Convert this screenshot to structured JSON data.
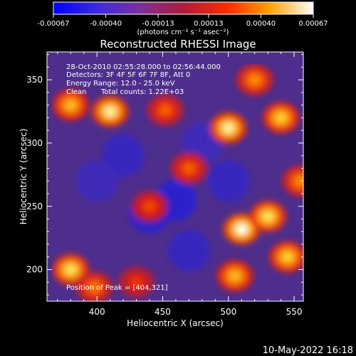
{
  "colorbar": {
    "tick_labels": [
      "-0.00067",
      "-0.00040",
      "-0.00013",
      "0.00013",
      "0.00040",
      "0.00067"
    ],
    "tick_values": [
      -0.00067,
      -0.0004,
      -0.00013,
      0.00013,
      0.0004,
      0.00067
    ],
    "range": [
      -0.00067,
      0.00067
    ],
    "unit_label": "(photons cm⁻² s⁻¹ asec⁻²)",
    "colormap": "blue-purple-red-yellow-white"
  },
  "chart_data": {
    "type": "heatmap",
    "title": "Reconstructed RHESSI Image",
    "xlabel": "Heliocentric X (arcsec)",
    "ylabel": "Heliocentric Y (arcsec)",
    "xlim": [
      362,
      557
    ],
    "ylim": [
      175,
      372
    ],
    "xticks": [
      400,
      450,
      500,
      550
    ],
    "yticks": [
      200,
      250,
      300,
      350
    ],
    "xtick_labels": [
      "400",
      "450",
      "500",
      "550"
    ],
    "ytick_labels": [
      "200",
      "250",
      "300",
      "350"
    ],
    "peak": [
      404,
      321
    ],
    "bright_regions": [
      {
        "x": 410,
        "y": 325,
        "level": 0.95
      },
      {
        "x": 380,
        "y": 330,
        "level": 0.8
      },
      {
        "x": 500,
        "y": 312,
        "level": 0.95
      },
      {
        "x": 540,
        "y": 320,
        "level": 0.85
      },
      {
        "x": 520,
        "y": 350,
        "level": 0.7
      },
      {
        "x": 380,
        "y": 200,
        "level": 0.9
      },
      {
        "x": 510,
        "y": 232,
        "level": 1.0
      },
      {
        "x": 530,
        "y": 242,
        "level": 0.9
      },
      {
        "x": 545,
        "y": 210,
        "level": 0.85
      },
      {
        "x": 505,
        "y": 195,
        "level": 0.8
      },
      {
        "x": 440,
        "y": 250,
        "level": 0.55
      },
      {
        "x": 470,
        "y": 280,
        "level": 0.6
      },
      {
        "x": 452,
        "y": 326,
        "level": 0.6
      },
      {
        "x": 555,
        "y": 270,
        "level": 0.7
      },
      {
        "x": 398,
        "y": 186,
        "level": 0.65
      },
      {
        "x": 430,
        "y": 190,
        "level": 0.5
      }
    ],
    "dim_regions": [
      {
        "x": 420,
        "y": 290,
        "level": -0.6
      },
      {
        "x": 460,
        "y": 255,
        "level": -0.8
      },
      {
        "x": 440,
        "y": 245,
        "level": -0.7
      },
      {
        "x": 480,
        "y": 300,
        "level": -0.5
      },
      {
        "x": 470,
        "y": 215,
        "level": -0.6
      },
      {
        "x": 400,
        "y": 270,
        "level": -0.5
      },
      {
        "x": 500,
        "y": 270,
        "level": -0.6
      }
    ]
  },
  "annotations": {
    "time_range": "28-Oct-2010 02:55:28.000 to 02:56:44.000",
    "detectors": "Detectors: 3F 4F 5F 6F 7F 8F, Att 0",
    "energy": "Energy Range: 12.0 - 25.0 keV",
    "clean_label": "Clean",
    "total_counts": "Total counts: 1.22E+03",
    "peak_position": "Position of Peak = [404,321]"
  },
  "footer": {
    "date": "10-May-2022 16:18"
  }
}
